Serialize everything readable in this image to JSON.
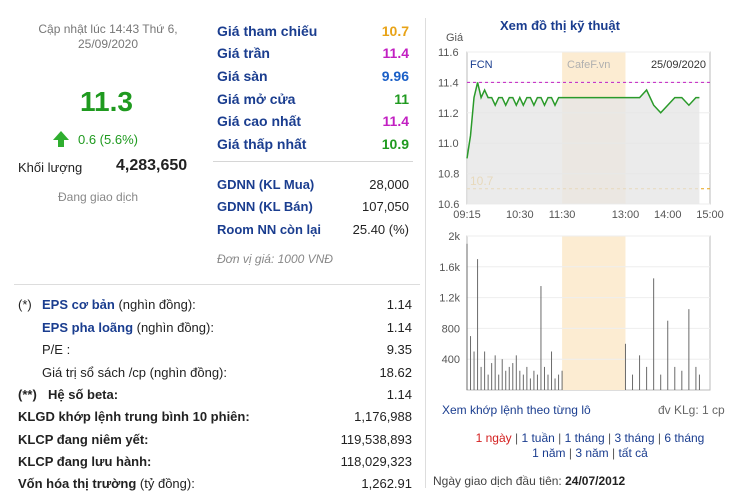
{
  "summary": {
    "updated": "Cập nhật lúc 14:43 Thứ 6, 25/09/2020",
    "price": "11.3",
    "change": "0.6 (5.6%)",
    "volume_label": "Khối lượng",
    "volume": "4,283,650",
    "status": "Đang giao dịch"
  },
  "price_table": [
    {
      "label": "Giá tham chiếu",
      "value": "10.7",
      "color": "#e8a317"
    },
    {
      "label": "Giá trần",
      "value": "11.4",
      "color": "#c21fc2"
    },
    {
      "label": "Giá sàn",
      "value": "9.96",
      "color": "#1a5fc7"
    },
    {
      "label": "Giá mở cửa",
      "value": "11",
      "color": "#1f9a1f"
    },
    {
      "label": "Giá cao nhất",
      "value": "11.4",
      "color": "#c21fc2"
    },
    {
      "label": "Giá thấp nhất",
      "value": "10.9",
      "color": "#1f9a1f"
    }
  ],
  "foreign": [
    {
      "label": "GDNN (KL Mua)",
      "value": "28,000"
    },
    {
      "label": "GDNN (KL Bán)",
      "value": "107,050"
    },
    {
      "label": "Room NN còn lại",
      "value": "25.40 (%)"
    }
  ],
  "unit_note": "Đơn vị giá: 1000 VNĐ",
  "fundamentals": [
    {
      "prefix": "(*)",
      "label_bold": "EPS cơ bản",
      "label_rest": " (nghìn đồng):",
      "value": "1.14",
      "style": "bl"
    },
    {
      "prefix": "",
      "label_bold": "EPS pha loãng",
      "label_rest": " (nghìn đồng):",
      "value": "1.14",
      "style": "bl"
    },
    {
      "prefix": "",
      "label_bold": "",
      "label_rest": "P/E :",
      "value": "9.35",
      "style": "plain"
    },
    {
      "prefix": "",
      "label_bold": "",
      "label_rest": "Giá trị sổ sách /cp (nghìn đồng):",
      "value": "18.62",
      "style": "plain"
    },
    {
      "prefix": "(**)",
      "label_bold": "Hệ số beta:",
      "label_rest": "",
      "value": "1.14",
      "style": "bk"
    },
    {
      "prefix": "",
      "label_bold": "KLGD khớp lệnh trung bình 10 phiên:",
      "label_rest": "",
      "value": "1,176,988",
      "style": "bk"
    },
    {
      "prefix": "",
      "label_bold": "KLCP đang niêm yết:",
      "label_rest": "",
      "value": "119,538,893",
      "style": "bk"
    },
    {
      "prefix": "",
      "label_bold": "KLCP đang lưu hành:",
      "label_rest": "",
      "value": "118,029,323",
      "style": "bk"
    },
    {
      "prefix": "",
      "label_bold": "Vốn hóa thị trường",
      "label_rest": " (tỷ đồng):",
      "value": "1,262.91",
      "style": "bk"
    }
  ],
  "chart_panel": {
    "title": "Xem đồ thị kỹ thuật",
    "detail_link": "Xem khớp lệnh theo từng lô",
    "unit": "đv KLg: 1 cp",
    "ranges": [
      "1 ngày",
      "1 tuần",
      "1 tháng",
      "3 tháng",
      "6 tháng",
      "1 năm",
      "3 năm",
      "tất cả"
    ],
    "active_range": "1 ngày",
    "first_day_label": "Ngày giao dịch đầu tiên:",
    "first_day": "24/07/2012"
  },
  "chart_data": [
    {
      "type": "line",
      "ylabel": "Giá",
      "ticker": "FCN",
      "watermark": "CafeF.vn",
      "date": "25/09/2020",
      "x_ticks": [
        "09:15",
        "10:30",
        "11:30",
        "13:00",
        "14:00",
        "15:00"
      ],
      "y_ticks": [
        10.6,
        10.8,
        11.0,
        11.2,
        11.4,
        11.6
      ],
      "ylim": [
        10.6,
        11.6
      ],
      "reference_line": {
        "value": 10.7,
        "label": "10.7",
        "color": "#e8a317"
      },
      "ceiling_line": {
        "value": 11.4,
        "color": "#c21fc2"
      },
      "lunch_break": [
        "11:30",
        "13:00"
      ],
      "x": [
        "09:15",
        "09:20",
        "09:25",
        "09:30",
        "09:35",
        "09:40",
        "09:45",
        "09:50",
        "09:55",
        "10:00",
        "10:05",
        "10:10",
        "10:15",
        "10:20",
        "10:25",
        "10:30",
        "10:35",
        "10:40",
        "10:45",
        "10:50",
        "10:55",
        "11:00",
        "11:05",
        "11:10",
        "11:15",
        "11:20",
        "11:25",
        "11:30",
        "13:00",
        "13:10",
        "13:20",
        "13:30",
        "13:40",
        "13:50",
        "14:00",
        "14:10",
        "14:20",
        "14:30",
        "14:40",
        "14:45"
      ],
      "values": [
        10.9,
        11.05,
        11.3,
        11.4,
        11.3,
        11.35,
        11.3,
        11.3,
        11.25,
        11.3,
        11.3,
        11.25,
        11.3,
        11.3,
        11.25,
        11.3,
        11.25,
        11.3,
        11.3,
        11.25,
        11.3,
        11.3,
        11.25,
        11.3,
        11.3,
        11.25,
        11.3,
        11.3,
        11.3,
        11.3,
        11.3,
        11.35,
        11.25,
        11.2,
        11.25,
        11.3,
        11.3,
        11.25,
        11.3,
        11.3
      ]
    },
    {
      "type": "bar",
      "y_ticks": [
        "2k",
        "1.6k",
        "1.2k",
        "800",
        "400"
      ],
      "ylim": [
        0,
        2000
      ],
      "x": [
        "09:15",
        "09:20",
        "09:25",
        "09:30",
        "09:35",
        "09:40",
        "09:45",
        "09:50",
        "09:55",
        "10:00",
        "10:05",
        "10:10",
        "10:15",
        "10:20",
        "10:25",
        "10:30",
        "10:35",
        "10:40",
        "10:45",
        "10:50",
        "10:55",
        "11:00",
        "11:05",
        "11:10",
        "11:15",
        "11:20",
        "11:25",
        "11:30",
        "13:00",
        "13:10",
        "13:20",
        "13:30",
        "13:40",
        "13:50",
        "14:00",
        "14:10",
        "14:20",
        "14:30",
        "14:40",
        "14:45"
      ],
      "values": [
        1900,
        700,
        500,
        1700,
        300,
        500,
        200,
        350,
        450,
        200,
        400,
        250,
        300,
        350,
        450,
        250,
        200,
        300,
        150,
        250,
        200,
        1350,
        300,
        200,
        500,
        150,
        200,
        250,
        600,
        200,
        450,
        300,
        1450,
        200,
        900,
        300,
        250,
        1050,
        300,
        200
      ]
    }
  ]
}
